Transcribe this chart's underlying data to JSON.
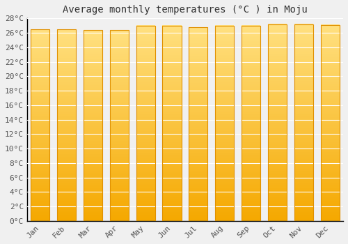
{
  "title": "Average monthly temperatures (°C ) in Moju",
  "months": [
    "Jan",
    "Feb",
    "Mar",
    "Apr",
    "May",
    "Jun",
    "Jul",
    "Aug",
    "Sep",
    "Oct",
    "Nov",
    "Dec"
  ],
  "values": [
    26.5,
    26.5,
    26.4,
    26.4,
    27.0,
    27.0,
    26.8,
    27.0,
    27.0,
    27.2,
    27.2,
    27.1
  ],
  "bar_color_bottom": "#F5A800",
  "bar_color_top": "#FFE080",
  "ylim": [
    0,
    28
  ],
  "yticks": [
    0,
    2,
    4,
    6,
    8,
    10,
    12,
    14,
    16,
    18,
    20,
    22,
    24,
    26,
    28
  ],
  "ytick_labels": [
    "0°C",
    "2°C",
    "4°C",
    "6°C",
    "8°C",
    "10°C",
    "12°C",
    "14°C",
    "16°C",
    "18°C",
    "20°C",
    "22°C",
    "24°C",
    "26°C",
    "28°C"
  ],
  "bg_color": "#f0f0f0",
  "plot_bg_color": "#f0f0f0",
  "grid_color": "#ffffff",
  "title_fontsize": 10,
  "tick_fontsize": 8,
  "font_family": "monospace",
  "bar_width": 0.72,
  "bar_edge_color": "#E09000",
  "bar_edge_lw": 0.8,
  "spine_color": "#000000"
}
